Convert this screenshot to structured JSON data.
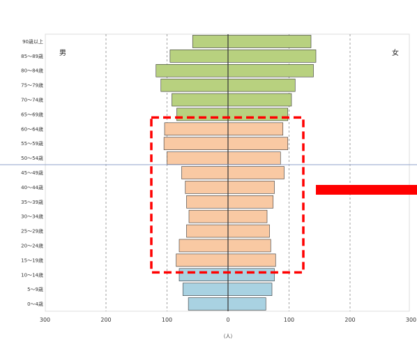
{
  "chart_data": {
    "type": "bar",
    "orientation": "horizontal",
    "subtype": "population-pyramid",
    "male_label": "男",
    "female_label": "女",
    "x_unit_label": "（人）",
    "x_ticks": [
      "300",
      "200",
      "100",
      "0",
      "100",
      "200",
      "300"
    ],
    "xlim": [
      -300,
      300
    ],
    "age_groups": [
      "90歳以上",
      "85～89歳",
      "80～84歳",
      "75～79歳",
      "70～74歳",
      "65～69歳",
      "60～64歳",
      "55～59歳",
      "50～54歳",
      "45～49歳",
      "40～44歳",
      "35～39歳",
      "30～34歳",
      "25～29歳",
      "20～24歳",
      "15～19歳",
      "10～14歳",
      "5～9歳",
      "0～4歳"
    ],
    "male": [
      58,
      95,
      118,
      110,
      92,
      84,
      104,
      105,
      100,
      76,
      70,
      68,
      64,
      68,
      80,
      85,
      80,
      74,
      65
    ],
    "female": [
      136,
      144,
      140,
      110,
      104,
      98,
      90,
      98,
      86,
      92,
      76,
      74,
      64,
      68,
      70,
      78,
      76,
      72,
      62
    ],
    "colors": {
      "elderly": "#b8d17f",
      "working": "#f9c9a3",
      "youth": "#a9d2e2",
      "outline": "#333333",
      "grid": "#888888",
      "axis": "#333333",
      "highlight": "#ff0000",
      "hline": "#8fa0c8"
    }
  }
}
